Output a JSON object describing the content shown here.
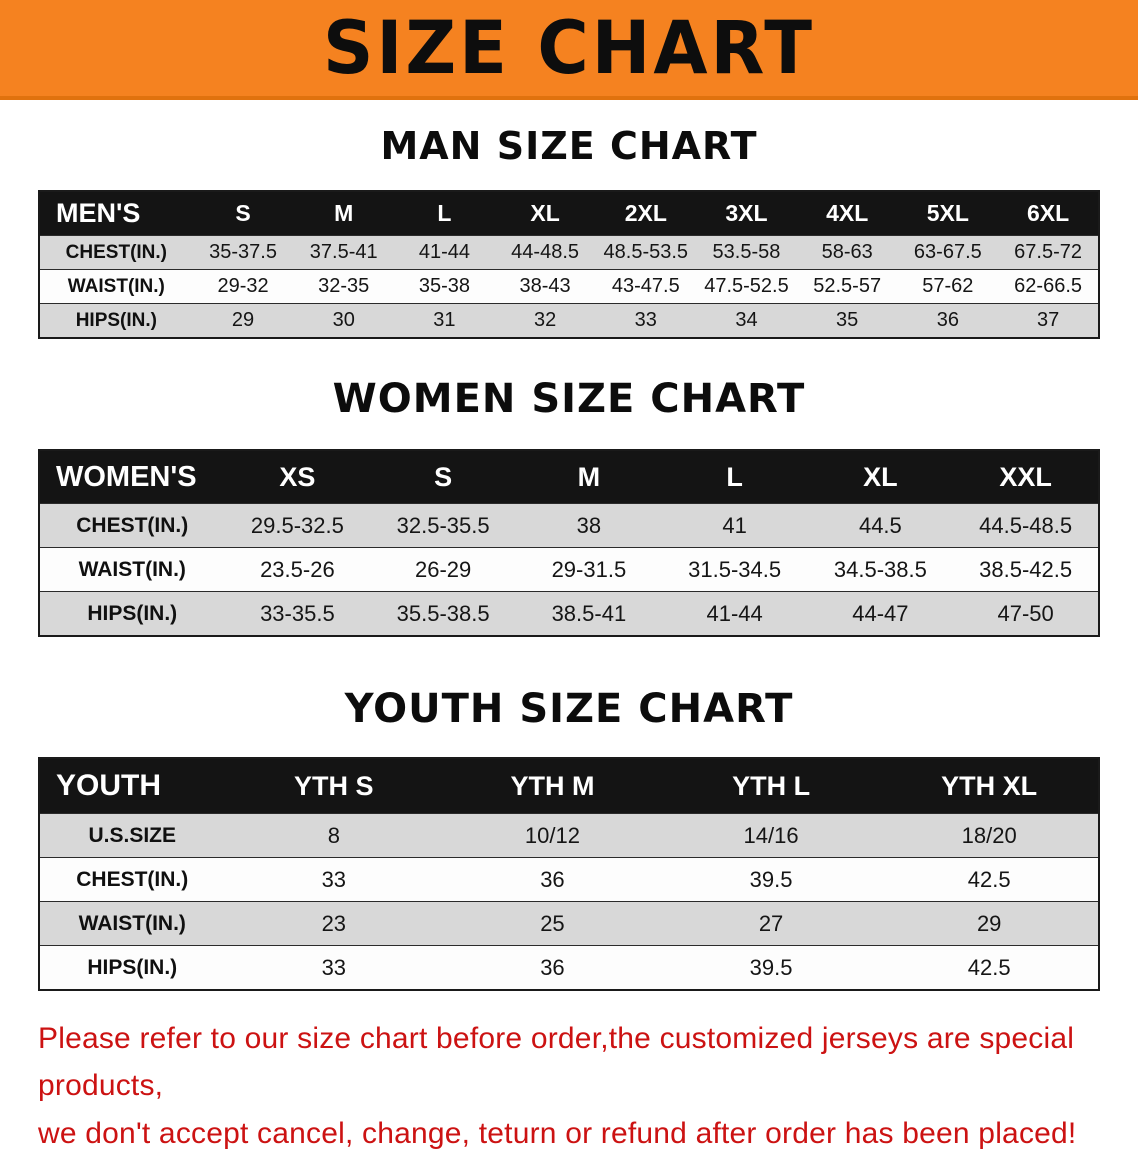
{
  "banner": {
    "title": "SIZE CHART"
  },
  "colors": {
    "banner_orange": "#f58220",
    "header_black": "#141414",
    "stripe_gray": "#d8d8d8",
    "notice_red": "#cc1212"
  },
  "sections": [
    {
      "heading": "MAN SIZE CHART",
      "label": "MEN'S",
      "sizes": [
        "S",
        "M",
        "L",
        "XL",
        "2XL",
        "3XL",
        "4XL",
        "5XL",
        "6XL"
      ],
      "rows": [
        {
          "label": "CHEST(IN.)",
          "values": [
            "35-37.5",
            "37.5-41",
            "41-44",
            "44-48.5",
            "48.5-53.5",
            "53.5-58",
            "58-63",
            "63-67.5",
            "67.5-72"
          ]
        },
        {
          "label": "WAIST(IN.)",
          "values": [
            "29-32",
            "32-35",
            "35-38",
            "38-43",
            "43-47.5",
            "47.5-52.5",
            "52.5-57",
            "57-62",
            "62-66.5"
          ]
        },
        {
          "label": "HIPS(IN.)",
          "values": [
            "29",
            "30",
            "31",
            "32",
            "33",
            "34",
            "35",
            "36",
            "37"
          ]
        }
      ]
    },
    {
      "heading": "WOMEN SIZE CHART",
      "label": "WOMEN'S",
      "sizes": [
        "XS",
        "S",
        "M",
        "L",
        "XL",
        "XXL"
      ],
      "rows": [
        {
          "label": "CHEST(IN.)",
          "values": [
            "29.5-32.5",
            "32.5-35.5",
            "38",
            "41",
            "44.5",
            "44.5-48.5"
          ]
        },
        {
          "label": "WAIST(IN.)",
          "values": [
            "23.5-26",
            "26-29",
            "29-31.5",
            "31.5-34.5",
            "34.5-38.5",
            "38.5-42.5"
          ]
        },
        {
          "label": "HIPS(IN.)",
          "values": [
            "33-35.5",
            "35.5-38.5",
            "38.5-41",
            "41-44",
            "44-47",
            "47-50"
          ]
        }
      ]
    },
    {
      "heading": "YOUTH SIZE CHART",
      "label": "YOUTH",
      "sizes": [
        "YTH S",
        "YTH M",
        "YTH L",
        "YTH XL"
      ],
      "rows": [
        {
          "label": "U.S.SIZE",
          "values": [
            "8",
            "10/12",
            "14/16",
            "18/20"
          ]
        },
        {
          "label": "CHEST(IN.)",
          "values": [
            "33",
            "36",
            "39.5",
            "42.5"
          ]
        },
        {
          "label": "WAIST(IN.)",
          "values": [
            "23",
            "25",
            "27",
            "29"
          ]
        },
        {
          "label": "HIPS(IN.)",
          "values": [
            "33",
            "36",
            "39.5",
            "42.5"
          ]
        }
      ]
    }
  ],
  "footer": {
    "line1": "Please refer to our size chart before order,the customized jerseys are special products,",
    "line2": "we don't accept cancel, change, teturn or refund after order has been placed!"
  }
}
